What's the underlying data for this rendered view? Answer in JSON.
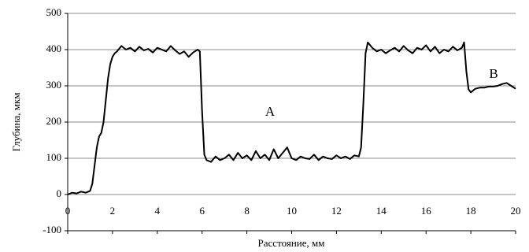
{
  "chart_data": {
    "type": "line",
    "xlabel": "Расстояние, мм",
    "ylabel": "Глубина, мкм",
    "annotations": [
      "A",
      "B"
    ],
    "xlim": [
      0,
      20
    ],
    "xticks": [
      0,
      2,
      4,
      6,
      8,
      10,
      12,
      14,
      16,
      18,
      20
    ],
    "ylim": [
      -100,
      500
    ],
    "yticks": [
      -100,
      0,
      100,
      200,
      300,
      400,
      500
    ],
    "grid": true,
    "x": [
      0,
      0.2,
      0.4,
      0.6,
      0.8,
      1.0,
      1.1,
      1.2,
      1.3,
      1.4,
      1.5,
      1.6,
      1.7,
      1.8,
      1.9,
      2.0,
      2.1,
      2.2,
      2.4,
      2.6,
      2.8,
      3.0,
      3.2,
      3.4,
      3.6,
      3.8,
      4.0,
      4.2,
      4.4,
      4.6,
      4.8,
      5.0,
      5.2,
      5.4,
      5.6,
      5.8,
      5.9,
      6.0,
      6.1,
      6.2,
      6.4,
      6.6,
      6.8,
      7.0,
      7.2,
      7.4,
      7.6,
      7.8,
      8.0,
      8.2,
      8.4,
      8.6,
      8.8,
      9.0,
      9.2,
      9.4,
      9.6,
      9.8,
      10.0,
      10.2,
      10.4,
      10.6,
      10.8,
      11.0,
      11.2,
      11.4,
      11.6,
      11.8,
      12.0,
      12.2,
      12.4,
      12.6,
      12.8,
      13.0,
      13.1,
      13.2,
      13.3,
      13.4,
      13.6,
      13.8,
      14.0,
      14.2,
      14.4,
      14.6,
      14.8,
      15.0,
      15.2,
      15.4,
      15.6,
      15.8,
      16.0,
      16.2,
      16.4,
      16.6,
      16.8,
      17.0,
      17.2,
      17.4,
      17.6,
      17.7,
      17.8,
      17.9,
      18.0,
      18.2,
      18.4,
      18.6,
      18.8,
      19.0,
      19.2,
      19.4,
      19.6,
      19.8,
      20.0
    ],
    "series": [
      {
        "color": "#000000",
        "values": [
          0,
          5,
          3,
          8,
          5,
          10,
          30,
          80,
          130,
          160,
          170,
          200,
          260,
          320,
          360,
          380,
          390,
          395,
          410,
          400,
          405,
          395,
          408,
          398,
          402,
          392,
          405,
          400,
          395,
          410,
          398,
          388,
          395,
          380,
          392,
          400,
          395,
          230,
          110,
          95,
          90,
          105,
          95,
          100,
          110,
          95,
          115,
          100,
          108,
          95,
          120,
          100,
          110,
          95,
          125,
          100,
          115,
          130,
          100,
          95,
          105,
          100,
          98,
          110,
          95,
          105,
          100,
          98,
          108,
          100,
          105,
          98,
          108,
          105,
          130,
          250,
          390,
          420,
          405,
          395,
          400,
          390,
          398,
          405,
          395,
          410,
          398,
          390,
          405,
          400,
          412,
          395,
          408,
          390,
          400,
          395,
          408,
          398,
          405,
          420,
          340,
          290,
          282,
          292,
          295,
          295,
          298,
          298,
          300,
          305,
          308,
          300,
          292
        ]
      }
    ]
  }
}
